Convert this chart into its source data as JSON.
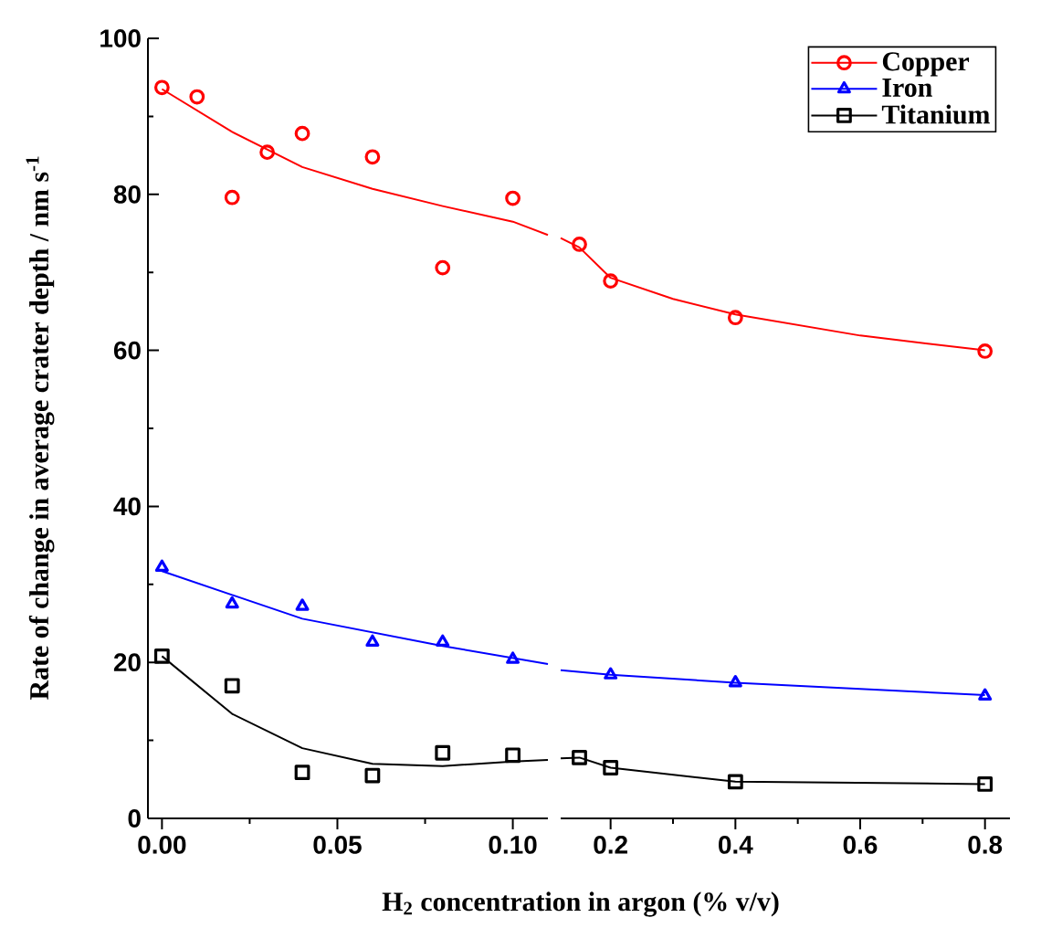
{
  "chart_data": [
    {
      "type": "scatter",
      "xlabel": "H$_{2}$ concentration in argon (% v/v)",
      "ylabel": "Rate of change in average crater depth / nm s$^{-1}$",
      "xlim": [
        -0.004,
        0.11
      ],
      "ylim": [
        0,
        100
      ],
      "xticks": [
        {
          "value": 0,
          "label": "0.00"
        },
        {
          "value": 0.05,
          "label": "0.05"
        },
        {
          "value": 0.1,
          "label": "0.10"
        }
      ],
      "yticks": [
        0,
        20,
        40,
        60,
        80,
        100
      ],
      "series": [
        {
          "marker": "circle",
          "color": "#ff0000",
          "x": [
            0,
            0.01,
            0.02,
            0.03,
            0.04,
            0.06,
            0.08,
            0.1
          ],
          "values": [
            93.7,
            92.5,
            79.6,
            85.4,
            87.8,
            84.8,
            70.6,
            79.5
          ]
        },
        {
          "marker": "triangle",
          "color": "#0000ff",
          "x": [
            0,
            0.02,
            0.04,
            0.06,
            0.08,
            0.1
          ],
          "values": [
            32.2,
            27.5,
            27.2,
            22.6,
            22.6,
            20.4
          ]
        },
        {
          "marker": "square",
          "color": "#000000",
          "x": [
            0,
            0.02,
            0.04,
            0.06,
            0.08,
            0.1
          ],
          "values": [
            20.8,
            17.0,
            5.9,
            5.5,
            8.4,
            8.1
          ]
        },
        {
          "type": "line",
          "marker": "none",
          "color": "#ff0000",
          "x": [
            0,
            0.02,
            0.04,
            0.06,
            0.08,
            0.1,
            0.11
          ],
          "values": [
            93.5,
            88.0,
            83.5,
            80.7,
            78.5,
            76.5,
            74.8
          ]
        },
        {
          "type": "line",
          "marker": "none",
          "color": "#0000ff",
          "x": [
            0,
            0.04,
            0.08,
            0.11
          ],
          "values": [
            31.7,
            25.6,
            22.1,
            19.8
          ]
        },
        {
          "type": "line",
          "marker": "none",
          "color": "#000000",
          "x": [
            0,
            0.02,
            0.04,
            0.06,
            0.08,
            0.1,
            0.11
          ],
          "values": [
            20.8,
            13.4,
            9.0,
            7.0,
            6.7,
            7.3,
            7.5
          ]
        }
      ]
    },
    {
      "type": "scatter",
      "xlim": [
        0.12,
        0.84
      ],
      "ylim": [
        0,
        100
      ],
      "xticks": [
        0.2,
        0.4,
        0.6,
        0.8
      ],
      "tick_labels": "x",
      "legend": "top right",
      "series": [
        {
          "name": "Copper",
          "marker": "circle",
          "color": "#ff0000",
          "x": [
            0.15,
            0.2,
            0.4,
            0.8
          ],
          "values": [
            73.6,
            68.9,
            64.2,
            59.9
          ]
        },
        {
          "name": "Iron",
          "marker": "triangle",
          "color": "#0000ff",
          "x": [
            0.2,
            0.4,
            0.8
          ],
          "values": [
            18.4,
            17.4,
            15.7
          ]
        },
        {
          "name": "Titanium",
          "marker": "square",
          "color": "#000000",
          "x": [
            0.15,
            0.2,
            0.4,
            0.8
          ],
          "values": [
            7.8,
            6.5,
            4.7,
            4.4
          ]
        },
        {
          "type": "line",
          "marker": "none",
          "color": "#ff0000",
          "x": [
            0.12,
            0.15,
            0.2,
            0.3,
            0.4,
            0.6,
            0.8
          ],
          "values": [
            74.4,
            73.2,
            69.3,
            66.6,
            64.6,
            61.9,
            60.0
          ]
        },
        {
          "type": "line",
          "marker": "none",
          "color": "#0000ff",
          "x": [
            0.12,
            0.2,
            0.4,
            0.8
          ],
          "values": [
            19.0,
            18.4,
            17.4,
            15.8
          ]
        },
        {
          "type": "line",
          "marker": "none",
          "color": "#000000",
          "x": [
            0.12,
            0.15,
            0.2,
            0.4,
            0.8
          ],
          "values": [
            7.7,
            7.8,
            6.5,
            4.7,
            4.4
          ]
        }
      ]
    }
  ]
}
